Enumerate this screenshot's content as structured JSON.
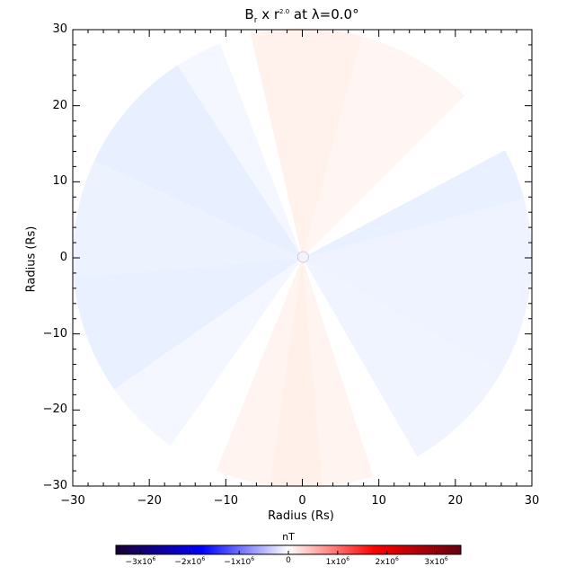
{
  "chart_data": {
    "type": "heatmap",
    "title": {
      "main": "B",
      "sub": "r",
      "mid": " x r",
      "sup": "2.0",
      "tail": " at λ=0.0°"
    },
    "xlabel": "Radius (Rs)",
    "ylabel": "Radius (Rs)",
    "xlim": [
      -30,
      30
    ],
    "ylim": [
      -30,
      30
    ],
    "xticks": [
      -30,
      -20,
      -10,
      0,
      10,
      20,
      30
    ],
    "yticks": [
      -30,
      -20,
      -10,
      0,
      10,
      20,
      30
    ],
    "xticklabels": [
      "−30",
      "−20",
      "−10",
      "0",
      "10",
      "20",
      "30"
    ],
    "yticklabels": [
      "−30",
      "−20",
      "−10",
      "0",
      "10",
      "20",
      "30"
    ],
    "disk_radius": 30,
    "gap_angles_deg": [
      103,
      240
    ],
    "colorbar": {
      "label": "nT",
      "range": [
        -3500000,
        3500000
      ],
      "ticks": [
        -3000000,
        -2000000,
        -1000000,
        0,
        1000000,
        2000000,
        3000000
      ],
      "ticklabels": [
        {
          "base": "−3x10",
          "exp": "6"
        },
        {
          "base": "−2x10",
          "exp": "6"
        },
        {
          "base": "−1x10",
          "exp": "6"
        },
        {
          "base": "0",
          "exp": ""
        },
        {
          "base": "1x10",
          "exp": "6"
        },
        {
          "base": "2x10",
          "exp": "6"
        },
        {
          "base": "3x10",
          "exp": "6"
        }
      ],
      "stops": [
        "#1a0033",
        "#0000ff",
        "#ffffff",
        "#ff0000",
        "#660011"
      ]
    },
    "sectors": [
      {
        "start_deg": -30,
        "end_deg": 15,
        "color": "#eef3ff"
      },
      {
        "start_deg": 15,
        "end_deg": 28,
        "color": "#e9f0ff"
      },
      {
        "start_deg": 28,
        "end_deg": 45,
        "color": "#ffffff"
      },
      {
        "start_deg": 45,
        "end_deg": 75,
        "color": "#fff5f2"
      },
      {
        "start_deg": 75,
        "end_deg": 103,
        "color": "#fff1ec"
      },
      {
        "start_deg": 111,
        "end_deg": 123,
        "color": "#f4f7ff"
      },
      {
        "start_deg": 123,
        "end_deg": 155,
        "color": "#e8efff"
      },
      {
        "start_deg": 155,
        "end_deg": 185,
        "color": "#edf2ff"
      },
      {
        "start_deg": 185,
        "end_deg": 215,
        "color": "#e9f0ff"
      },
      {
        "start_deg": 215,
        "end_deg": 235,
        "color": "#f4f7ff"
      },
      {
        "start_deg": 248,
        "end_deg": 262,
        "color": "#fff4f0"
      },
      {
        "start_deg": 262,
        "end_deg": 275,
        "color": "#fff0ea"
      },
      {
        "start_deg": 275,
        "end_deg": 288,
        "color": "#fff4f0"
      },
      {
        "start_deg": 288,
        "end_deg": 300,
        "color": "#ffffff"
      },
      {
        "start_deg": 300,
        "end_deg": 330,
        "color": "#f0f4ff"
      }
    ]
  }
}
